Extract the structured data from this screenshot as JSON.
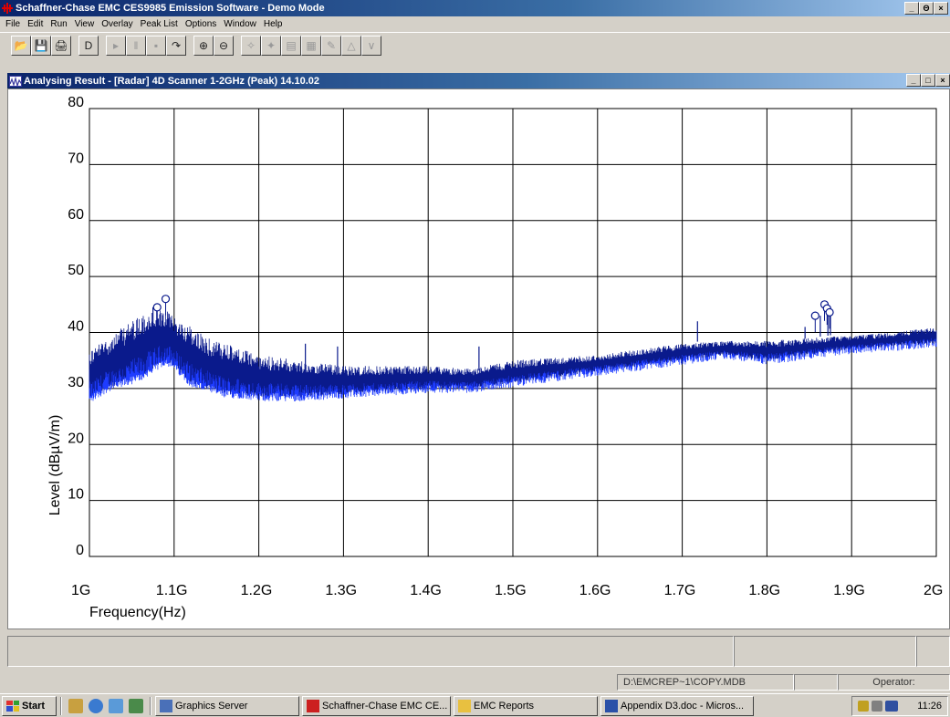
{
  "app": {
    "title": "Schaffner-Chase EMC CES9985 Emission Software - Demo Mode",
    "window_buttons": [
      "_",
      "Θ",
      "×"
    ]
  },
  "menu": [
    "File",
    "Edit",
    "Run",
    "View",
    "Overlay",
    "Peak List",
    "Options",
    "Window",
    "Help"
  ],
  "toolbar": {
    "buttons": [
      {
        "name": "open-icon",
        "glyph": "📂"
      },
      {
        "name": "save-icon",
        "glyph": "💾"
      },
      {
        "name": "print-icon",
        "glyph": "🖨"
      },
      {
        "name": "new-page-icon",
        "glyph": "D"
      },
      {
        "name": "play-icon",
        "glyph": "▸"
      },
      {
        "name": "pause-icon",
        "glyph": "‖"
      },
      {
        "name": "stop-icon",
        "glyph": "▪"
      },
      {
        "name": "step-icon",
        "glyph": "↷"
      },
      {
        "name": "zoom-in-icon",
        "glyph": "⊕"
      },
      {
        "name": "zoom-out-icon",
        "glyph": "⊖"
      },
      {
        "name": "peak-marker-icon",
        "glyph": "✧"
      },
      {
        "name": "peak-next-icon",
        "glyph": "✦"
      },
      {
        "name": "peak-table-icon",
        "glyph": "▤"
      },
      {
        "name": "peak-table-2-icon",
        "glyph": "▦"
      },
      {
        "name": "peak-edit-icon",
        "glyph": "✎"
      },
      {
        "name": "peak-delta-icon",
        "glyph": "△"
      },
      {
        "name": "filter-icon",
        "glyph": "∨"
      }
    ]
  },
  "child_window": {
    "title": "Analysing Result - [Radar] 4D Scanner 1-2GHz (Peak) 14.10.02",
    "window_buttons": [
      "_",
      "□",
      "×"
    ]
  },
  "chart_data": {
    "type": "line",
    "xlabel": "Frequency(Hz)",
    "ylabel": "Level (dBµV/m)",
    "x_ticks": [
      "1G",
      "1.1G",
      "1.2G",
      "1.3G",
      "1.4G",
      "1.5G",
      "1.6G",
      "1.7G",
      "1.8G",
      "1.9G",
      "2G"
    ],
    "y_ticks": [
      "0",
      "10",
      "20",
      "30",
      "40",
      "50",
      "60",
      "70",
      "80"
    ],
    "xlim": [
      1.0,
      2.0
    ],
    "ylim": [
      0,
      80
    ],
    "grid": true,
    "series_color": "#0a1a8c",
    "series_color_light": "#1e3cff",
    "envelope": [
      {
        "x": 1.0,
        "min": 28,
        "max": 37
      },
      {
        "x": 1.02,
        "min": 30,
        "max": 39
      },
      {
        "x": 1.04,
        "min": 31,
        "max": 41
      },
      {
        "x": 1.06,
        "min": 32,
        "max": 43
      },
      {
        "x": 1.08,
        "min": 34,
        "max": 44
      },
      {
        "x": 1.09,
        "min": 35,
        "max": 44
      },
      {
        "x": 1.1,
        "min": 34,
        "max": 43
      },
      {
        "x": 1.12,
        "min": 31,
        "max": 41
      },
      {
        "x": 1.14,
        "min": 30,
        "max": 39
      },
      {
        "x": 1.16,
        "min": 29,
        "max": 38
      },
      {
        "x": 1.18,
        "min": 29,
        "max": 37
      },
      {
        "x": 1.2,
        "min": 28.5,
        "max": 36
      },
      {
        "x": 1.25,
        "min": 28.5,
        "max": 35
      },
      {
        "x": 1.3,
        "min": 29,
        "max": 34
      },
      {
        "x": 1.35,
        "min": 29.5,
        "max": 34
      },
      {
        "x": 1.4,
        "min": 30,
        "max": 34
      },
      {
        "x": 1.45,
        "min": 30,
        "max": 33.5
      },
      {
        "x": 1.5,
        "min": 31,
        "max": 35
      },
      {
        "x": 1.55,
        "min": 32,
        "max": 35.5
      },
      {
        "x": 1.6,
        "min": 33,
        "max": 36
      },
      {
        "x": 1.65,
        "min": 34,
        "max": 37
      },
      {
        "x": 1.7,
        "min": 35,
        "max": 38
      },
      {
        "x": 1.75,
        "min": 36,
        "max": 38.5
      },
      {
        "x": 1.8,
        "min": 35,
        "max": 38.5
      },
      {
        "x": 1.85,
        "min": 36,
        "max": 39
      },
      {
        "x": 1.9,
        "min": 37,
        "max": 39.5
      },
      {
        "x": 1.95,
        "min": 37.5,
        "max": 40
      },
      {
        "x": 2.0,
        "min": 38,
        "max": 41
      }
    ],
    "spikes": [
      {
        "x": 1.075,
        "y": 44.5
      },
      {
        "x": 1.255,
        "y": 38
      },
      {
        "x": 1.293,
        "y": 37.5
      },
      {
        "x": 1.46,
        "y": 37.5
      },
      {
        "x": 1.718,
        "y": 42
      },
      {
        "x": 1.845,
        "y": 41
      },
      {
        "x": 1.863,
        "y": 43
      },
      {
        "x": 1.872,
        "y": 44.5
      },
      {
        "x": 1.875,
        "y": 43
      }
    ],
    "peak_markers": [
      {
        "x": 1.08,
        "y": 44.5
      },
      {
        "x": 1.09,
        "y": 46
      },
      {
        "x": 1.857,
        "y": 43
      },
      {
        "x": 1.868,
        "y": 45
      },
      {
        "x": 1.871,
        "y": 44.3
      },
      {
        "x": 1.874,
        "y": 43.6
      }
    ]
  },
  "status_inner": [
    "",
    "",
    ""
  ],
  "statusbar": {
    "db_path": "D:\\EMCREP~1\\COPY.MDB",
    "empty": "",
    "operator": "Operator:"
  },
  "taskbar": {
    "start": "Start",
    "tasks": [
      {
        "label": "Graphics Server",
        "name": "task-graphics-server"
      },
      {
        "label": "Schaffner-Chase EMC CE...",
        "name": "task-schaffner-chase"
      },
      {
        "label": "EMC Reports",
        "name": "task-emc-reports"
      },
      {
        "label": "Appendix D3.doc - Micros...",
        "name": "task-appendix-doc"
      }
    ],
    "clock": "11:26"
  }
}
